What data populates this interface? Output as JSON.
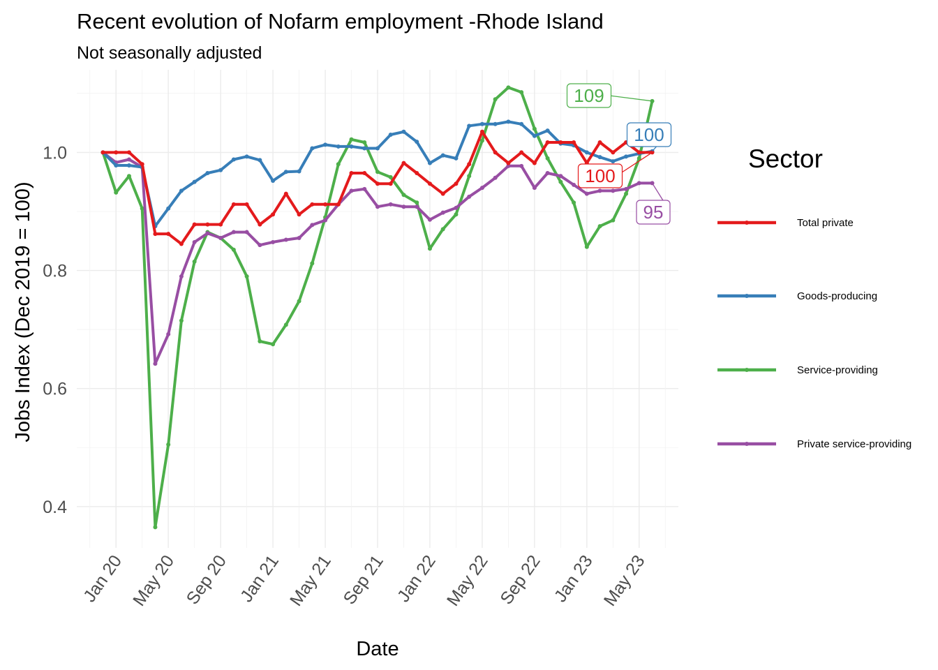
{
  "chart_data": {
    "type": "line",
    "title": "Recent evolution of Nofarm employment -Rhode Island",
    "subtitle": "Not seasonally adjusted",
    "xlabel": "Date",
    "ylabel": "Jobs Index (Dec 2019 = 100)",
    "ylim": [
      0.33,
      1.14
    ],
    "yticks": [
      0.4,
      0.6,
      0.8,
      1.0
    ],
    "ytick_labels": [
      "0.4",
      "0.6",
      "0.8",
      "1.0"
    ],
    "x_start": "2019-12",
    "x_end": "2023-06",
    "xlim": [
      "2019-10",
      "2023-08"
    ],
    "xticks": [
      "2020-01",
      "2020-05",
      "2020-09",
      "2021-01",
      "2021-05",
      "2021-09",
      "2022-01",
      "2022-05",
      "2022-09",
      "2023-01",
      "2023-05"
    ],
    "xtick_labels": [
      "Jan 20",
      "May 20",
      "Sep 20",
      "Jan 21",
      "May 21",
      "Sep 21",
      "Jan 22",
      "May 22",
      "Sep 22",
      "Jan 23",
      "May 23"
    ],
    "grid": true,
    "legend": {
      "title": "Sector",
      "position": "right"
    },
    "series": [
      {
        "name": "Total private",
        "color": "#E41A1C",
        "end_label": "100",
        "values": [
          1.0,
          1.0,
          1.0,
          0.98,
          0.862,
          0.862,
          0.845,
          0.878,
          0.878,
          0.878,
          0.912,
          0.912,
          0.878,
          0.895,
          0.93,
          0.895,
          0.912,
          0.912,
          0.912,
          0.965,
          0.965,
          0.947,
          0.947,
          0.982,
          0.965,
          0.947,
          0.93,
          0.947,
          0.98,
          1.035,
          1.0,
          0.982,
          1.0,
          0.982,
          1.017,
          1.017,
          1.017,
          0.982,
          1.017,
          1.0,
          1.017,
          1.0,
          1.0
        ]
      },
      {
        "name": "Goods-producing",
        "color": "#377EB8",
        "end_label": "100",
        "values": [
          1.0,
          0.978,
          0.978,
          0.975,
          0.875,
          0.905,
          0.935,
          0.95,
          0.965,
          0.97,
          0.988,
          0.993,
          0.987,
          0.952,
          0.967,
          0.968,
          1.007,
          1.013,
          1.01,
          1.01,
          1.007,
          1.007,
          1.03,
          1.035,
          1.018,
          0.982,
          0.995,
          0.99,
          1.045,
          1.048,
          1.048,
          1.052,
          1.048,
          1.028,
          1.037,
          1.015,
          1.012,
          1.0,
          0.992,
          0.985,
          0.993,
          0.998,
          1.002
        ]
      },
      {
        "name": "Service-providing",
        "color": "#4DAF4A",
        "end_label": "109",
        "values": [
          1.0,
          0.932,
          0.96,
          0.905,
          0.365,
          0.505,
          0.715,
          0.815,
          0.865,
          0.855,
          0.835,
          0.79,
          0.68,
          0.675,
          0.708,
          0.748,
          0.812,
          0.89,
          0.98,
          1.022,
          1.017,
          0.967,
          0.958,
          0.928,
          0.915,
          0.837,
          0.87,
          0.895,
          0.96,
          1.02,
          1.09,
          1.11,
          1.102,
          1.04,
          0.99,
          0.95,
          0.915,
          0.84,
          0.875,
          0.885,
          0.93,
          0.99,
          1.087
        ]
      },
      {
        "name": "Private service-providing",
        "color": "#984EA3",
        "end_label": "95",
        "values": [
          1.0,
          0.983,
          0.988,
          0.975,
          0.642,
          0.692,
          0.79,
          0.848,
          0.863,
          0.855,
          0.865,
          0.865,
          0.843,
          0.848,
          0.852,
          0.855,
          0.877,
          0.885,
          0.912,
          0.935,
          0.938,
          0.908,
          0.912,
          0.908,
          0.908,
          0.886,
          0.898,
          0.906,
          0.925,
          0.94,
          0.957,
          0.977,
          0.977,
          0.94,
          0.965,
          0.96,
          0.945,
          0.93,
          0.935,
          0.935,
          0.938,
          0.948,
          0.948
        ]
      }
    ]
  }
}
